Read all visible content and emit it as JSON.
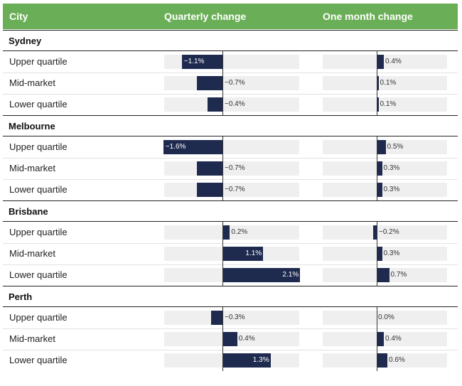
{
  "header": {
    "city_label": "City",
    "quarterly_label": "Quarterly change",
    "monthly_label": "One month change"
  },
  "colors": {
    "header_bg": "#6aaf57",
    "bar": "#1f2a4f",
    "track": "#efefef"
  },
  "chart_data": {
    "type": "bar",
    "orientation": "horizontal",
    "panels": [
      "Quarterly change",
      "One month change"
    ],
    "groups": [
      {
        "name": "Sydney",
        "rows": [
          {
            "label": "Upper quartile",
            "quarterly": -1.1,
            "quarterly_text": "−1.1%",
            "monthly": 0.4,
            "monthly_text": "0.4%"
          },
          {
            "label": "Mid-market",
            "quarterly": -0.7,
            "quarterly_text": "−0.7%",
            "monthly": 0.1,
            "monthly_text": "0.1%"
          },
          {
            "label": "Lower quartile",
            "quarterly": -0.4,
            "quarterly_text": "−0.4%",
            "monthly": 0.1,
            "monthly_text": "0.1%"
          }
        ]
      },
      {
        "name": "Melbourne",
        "rows": [
          {
            "label": "Upper quartile",
            "quarterly": -1.6,
            "quarterly_text": "−1.6%",
            "monthly": 0.5,
            "monthly_text": "0.5%"
          },
          {
            "label": "Mid-market",
            "quarterly": -0.7,
            "quarterly_text": "−0.7%",
            "monthly": 0.3,
            "monthly_text": "0.3%"
          },
          {
            "label": "Lower quartile",
            "quarterly": -0.7,
            "quarterly_text": "−0.7%",
            "monthly": 0.3,
            "monthly_text": "0.3%"
          }
        ]
      },
      {
        "name": "Brisbane",
        "rows": [
          {
            "label": "Upper quartile",
            "quarterly": 0.2,
            "quarterly_text": "0.2%",
            "monthly": -0.2,
            "monthly_text": "−0.2%"
          },
          {
            "label": "Mid-market",
            "quarterly": 1.1,
            "quarterly_text": "1.1%",
            "monthly": 0.3,
            "monthly_text": "0.3%"
          },
          {
            "label": "Lower quartile",
            "quarterly": 2.1,
            "quarterly_text": "2.1%",
            "monthly": 0.7,
            "monthly_text": "0.7%"
          }
        ]
      },
      {
        "name": "Perth",
        "rows": [
          {
            "label": "Upper quartile",
            "quarterly": -0.3,
            "quarterly_text": "−0.3%",
            "monthly": 0.0,
            "monthly_text": "0.0%"
          },
          {
            "label": "Mid-market",
            "quarterly": 0.4,
            "quarterly_text": "0.4%",
            "monthly": 0.4,
            "monthly_text": "0.4%"
          },
          {
            "label": "Lower quartile",
            "quarterly": 1.3,
            "quarterly_text": "1.3%",
            "monthly": 0.6,
            "monthly_text": "0.6%"
          }
        ]
      }
    ],
    "quarterly_range": [
      -1.6,
      2.1
    ],
    "monthly_range": [
      -0.2,
      0.7
    ],
    "grid": false,
    "legend": "none"
  }
}
